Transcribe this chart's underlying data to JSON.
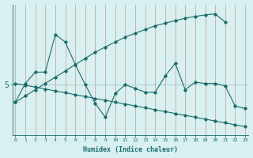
{
  "xlabel": "Humidex (Indice chaleur)",
  "x_values": [
    0,
    1,
    2,
    3,
    4,
    5,
    6,
    7,
    8,
    9,
    10,
    11,
    12,
    13,
    14,
    15,
    16,
    17,
    18,
    19,
    20,
    21,
    22,
    23
  ],
  "jagged_line": [
    4.3,
    5.05,
    5.5,
    5.5,
    7.0,
    6.7,
    5.8,
    5.0,
    4.25,
    3.7,
    4.65,
    5.0,
    4.85,
    4.7,
    4.7,
    5.35,
    5.85,
    4.8,
    5.1,
    5.05,
    5.05,
    4.95,
    4.15,
    4.05
  ],
  "trend_up": [
    4.3,
    4.55,
    4.8,
    5.05,
    5.3,
    5.55,
    5.8,
    6.05,
    6.3,
    6.5,
    6.7,
    6.9,
    7.05,
    7.2,
    7.35,
    7.45,
    7.55,
    7.65,
    7.72,
    7.78,
    7.82,
    7.5,
    null,
    null
  ],
  "trend_down": [
    5.05,
    4.98,
    4.9,
    4.83,
    4.75,
    4.68,
    4.6,
    4.53,
    4.45,
    4.38,
    4.3,
    4.23,
    4.15,
    4.08,
    4.0,
    3.93,
    3.85,
    3.78,
    3.7,
    3.63,
    3.55,
    3.48,
    3.4,
    3.33
  ],
  "bg_color": "#d8f0f0",
  "line_color": "#1a6b6b",
  "vgrid_color": "#c8a8a8",
  "hgrid_color": "#a8c8c8",
  "ytick_value": 5.0,
  "ylim_min": 3.0,
  "ylim_max": 8.2,
  "xlim_min": -0.3,
  "xlim_max": 23.3
}
